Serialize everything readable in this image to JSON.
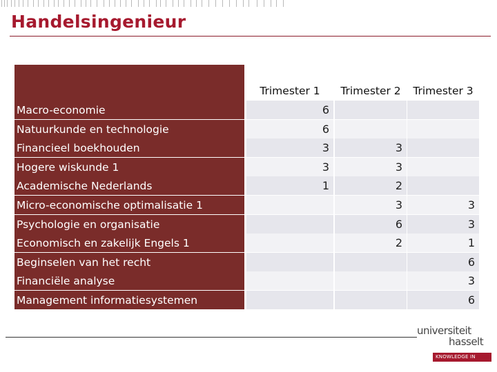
{
  "header": {
    "title": "Handelsingenieur"
  },
  "table": {
    "columns": [
      "Trimester 1",
      "Trimester 2",
      "Trimester 3"
    ],
    "rows": [
      {
        "name": "Macro-economie",
        "t1": "6",
        "t2": "",
        "t3": ""
      },
      {
        "name": "Natuurkunde en technologie",
        "t1": "6",
        "t2": "",
        "t3": ""
      },
      {
        "name": "Financieel boekhouden",
        "t1": "3",
        "t2": "3",
        "t3": ""
      },
      {
        "name": "Hogere wiskunde 1",
        "t1": "3",
        "t2": "3",
        "t3": ""
      },
      {
        "name": "Academische Nederlands",
        "t1": "1",
        "t2": "2",
        "t3": ""
      },
      {
        "name": "Micro-economische optimalisatie 1",
        "t1": "",
        "t2": "3",
        "t3": "3"
      },
      {
        "name": "Psychologie en organisatie",
        "t1": "",
        "t2": "6",
        "t3": "3"
      },
      {
        "name": "Economisch en zakelijk Engels 1",
        "t1": "",
        "t2": "2",
        "t3": "1"
      },
      {
        "name": "Beginselen van het recht",
        "t1": "",
        "t2": "",
        "t3": "6"
      },
      {
        "name": "Financiële analyse",
        "t1": "",
        "t2": "",
        "t3": "3"
      },
      {
        "name": "Management informatiesystemen",
        "t1": "",
        "t2": "",
        "t3": "6"
      }
    ]
  },
  "logo": {
    "line1": "universiteit",
    "line2": "hasselt",
    "tagline": "KNOWLEDGE IN ACTION"
  },
  "colors": {
    "accent": "#a6192e",
    "name_cell": "#7a2c2a",
    "cell_shade_a": "#e6e6ec",
    "cell_shade_b": "#f2f2f5"
  }
}
